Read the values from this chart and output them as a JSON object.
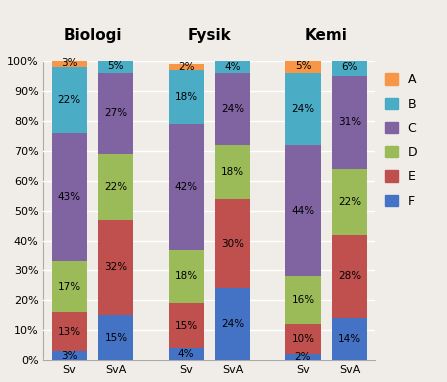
{
  "categories": [
    "Sv",
    "SvA",
    "Sv",
    "SvA",
    "Sv",
    "SvA"
  ],
  "group_labels": [
    "Biologi",
    "Fysik",
    "Kemi"
  ],
  "group_positions": [
    0,
    1,
    2.5,
    3.5,
    5,
    6
  ],
  "group_centers": [
    0.5,
    3.0,
    5.5
  ],
  "series": {
    "F": [
      3,
      15,
      4,
      24,
      2,
      14
    ],
    "E": [
      13,
      32,
      15,
      30,
      10,
      28
    ],
    "D": [
      17,
      22,
      18,
      18,
      16,
      22
    ],
    "C": [
      43,
      27,
      42,
      24,
      44,
      31
    ],
    "B": [
      22,
      5,
      18,
      4,
      24,
      6
    ],
    "A": [
      3,
      0,
      2,
      0,
      5,
      0
    ]
  },
  "colors": {
    "F": "#4472C4",
    "E": "#C0504D",
    "D": "#9BBB59",
    "C": "#8064A2",
    "B": "#4BACC6",
    "A": "#F79646"
  },
  "bar_width": 0.75,
  "ylim": [
    0,
    100
  ],
  "yticks": [
    0,
    10,
    20,
    30,
    40,
    50,
    60,
    70,
    80,
    90,
    100
  ],
  "ytick_labels": [
    "0%",
    "10%",
    "20%",
    "30%",
    "40%",
    "50%",
    "60%",
    "70%",
    "80%",
    "90%",
    "100%"
  ],
  "xlabel_labels": [
    "Sv",
    "SvA",
    "Sv",
    "SvA",
    "Sv",
    "SvA"
  ],
  "group_title_fontsize": 11,
  "label_fontsize": 7.5,
  "tick_fontsize": 8,
  "legend_fontsize": 9,
  "bg_color": "#F0EDE8",
  "grid_color": "white"
}
